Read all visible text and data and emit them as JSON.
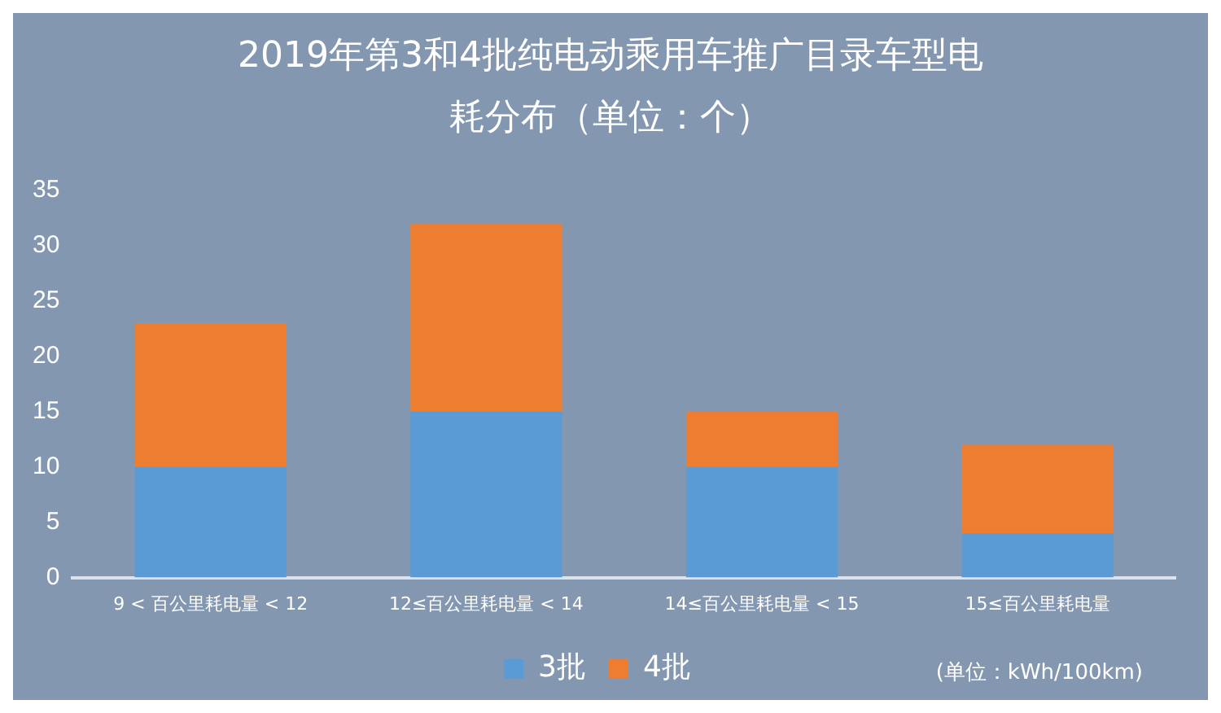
{
  "chart_data": {
    "type": "bar",
    "title": "2019年第3和4批纯电动乘用车推广目录车型电耗分布（单位：个）",
    "categories": [
      "9 < 百公里耗电量 < 12",
      "12≤百公里耗电量 < 14",
      "14≤百公里耗电量 < 15",
      "15≤百公里耗电量"
    ],
    "stacked": true,
    "series": [
      {
        "name": "3批",
        "color": "#5b9bd5",
        "values": [
          10,
          15,
          10,
          4
        ]
      },
      {
        "name": "4批",
        "color": "#ed7d31",
        "values": [
          13,
          17,
          5,
          8
        ]
      }
    ],
    "ylim": [
      0,
      35
    ],
    "yticks": [
      0,
      5,
      10,
      15,
      20,
      25,
      30,
      35
    ],
    "grid": false,
    "legend": "bottom",
    "annotations": [
      "(单位：kWh/100km)"
    ]
  }
}
